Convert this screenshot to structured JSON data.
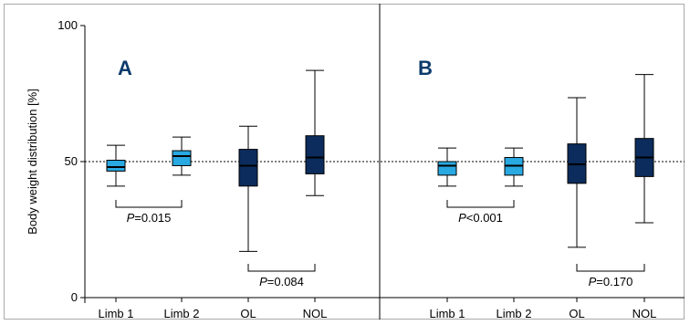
{
  "colors": {
    "light": "#29a9e1",
    "dark": "#0b2c5c",
    "axis": "#000000",
    "panel_label": "#0b3a6b"
  },
  "chart_data": {
    "type": "box",
    "ylabel": "Body weight distribution [%]",
    "ylim": [
      0,
      100
    ],
    "yticks": [
      "0",
      "50",
      "100"
    ],
    "reference_line": 50,
    "categories": [
      "Limb 1",
      "Limb 2",
      "OL",
      "NOL"
    ],
    "panels": [
      {
        "label": "A",
        "boxes": [
          {
            "category": "Limb 1",
            "color": "light",
            "min": 41,
            "q1": 46.5,
            "median": 48,
            "q3": 50.5,
            "max": 56
          },
          {
            "category": "Limb 2",
            "color": "light",
            "min": 45,
            "q1": 48.5,
            "median": 52,
            "q3": 54,
            "max": 59
          },
          {
            "category": "OL",
            "color": "dark",
            "min": 17,
            "q1": 41,
            "median": 48.5,
            "q3": 54.5,
            "max": 63
          },
          {
            "category": "NOL",
            "color": "dark",
            "min": 37.5,
            "q1": 45.5,
            "median": 51.5,
            "q3": 59.5,
            "max": 83.5
          }
        ],
        "comparisons": [
          {
            "between": [
              "Limb 1",
              "Limb 2"
            ],
            "italic": "P",
            "text": "=0.015"
          },
          {
            "between": [
              "OL",
              "NOL"
            ],
            "italic": "P",
            "text": "=0.084"
          }
        ]
      },
      {
        "label": "B",
        "boxes": [
          {
            "category": "Limb 1",
            "color": "light",
            "min": 41,
            "q1": 45,
            "median": 48.5,
            "q3": 50,
            "max": 55
          },
          {
            "category": "Limb 2",
            "color": "light",
            "min": 41,
            "q1": 45,
            "median": 48.5,
            "q3": 51.5,
            "max": 55
          },
          {
            "category": "OL",
            "color": "dark",
            "min": 18.5,
            "q1": 42,
            "median": 49,
            "q3": 56.5,
            "max": 73.5
          },
          {
            "category": "NOL",
            "color": "dark",
            "min": 27.5,
            "q1": 44.5,
            "median": 51.5,
            "q3": 58.5,
            "max": 82
          }
        ],
        "comparisons": [
          {
            "between": [
              "Limb 1",
              "Limb 2"
            ],
            "italic": "P",
            "text": "<0.001"
          },
          {
            "between": [
              "OL",
              "NOL"
            ],
            "italic": "P",
            "text": "=0.170"
          }
        ]
      }
    ]
  }
}
